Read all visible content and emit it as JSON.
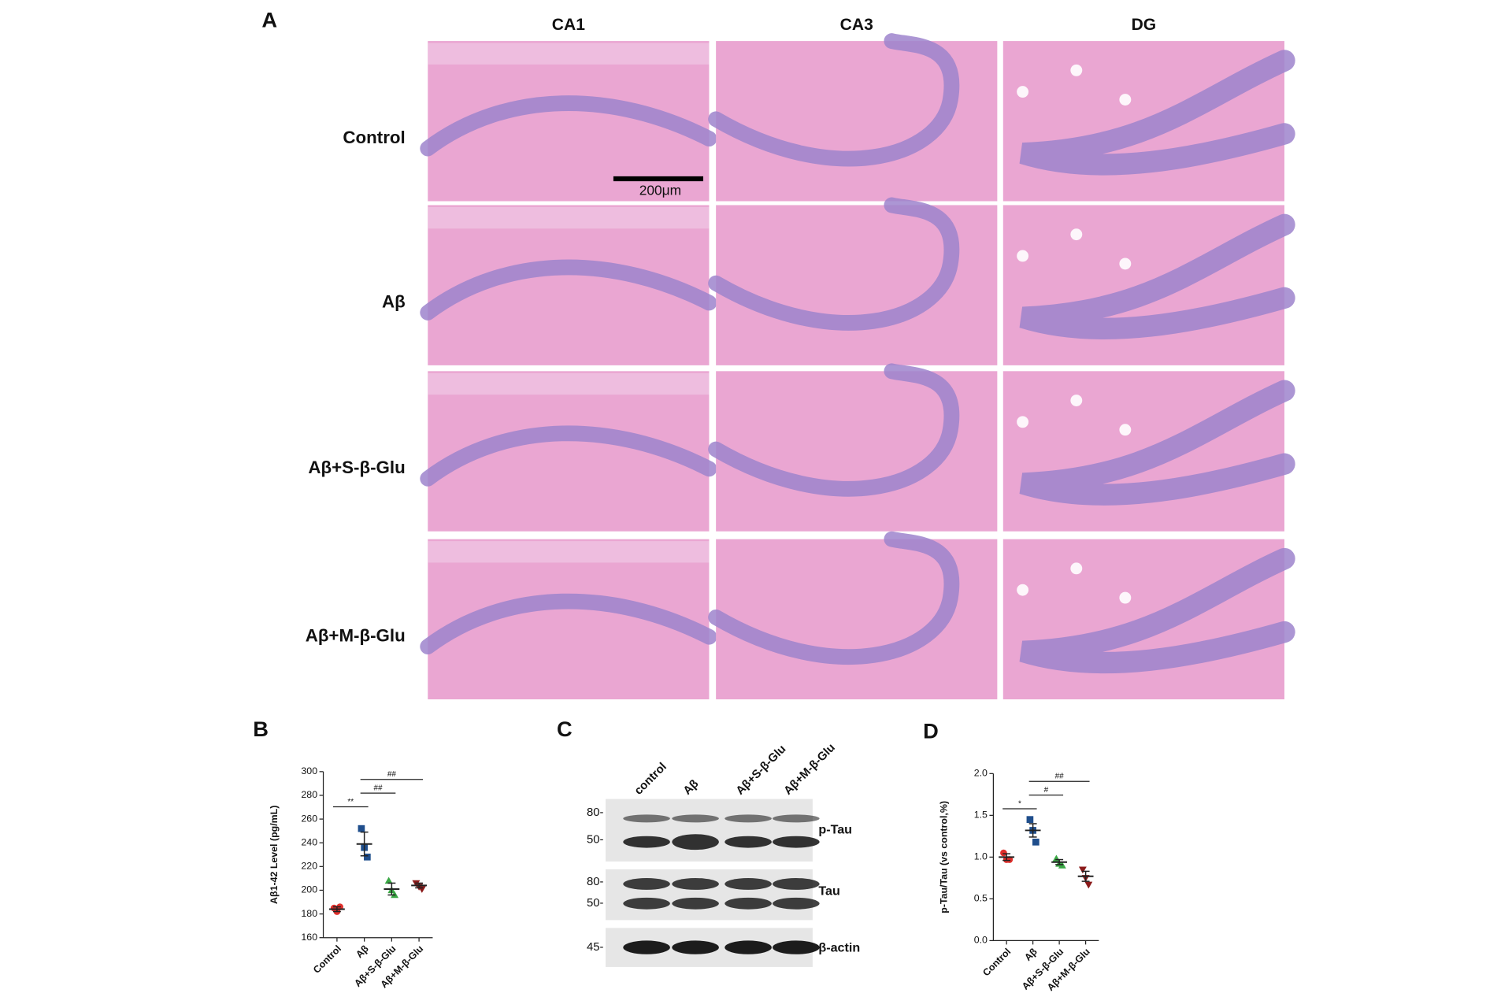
{
  "panel_a": {
    "label": "A",
    "columns": [
      "CA1",
      "CA3",
      "DG"
    ],
    "rows": [
      "Control",
      "Aβ",
      "Aβ+S-β-Glu",
      "Aβ+M-β-Glu"
    ],
    "scale_bar": "200μm"
  },
  "panel_c": {
    "label": "C",
    "lanes": [
      "control",
      "Aβ",
      "Aβ+S-β-Glu",
      "Aβ+M-β-Glu"
    ],
    "markers": [
      "80-",
      "50-",
      "80-",
      "50-",
      "45-"
    ],
    "bands": [
      "p-Tau",
      "Tau",
      "β-actin"
    ]
  },
  "chart_data": [
    {
      "type": "dot",
      "panel": "B",
      "ylabel": "Aβ1-42 Level (pg/mL)",
      "categories": [
        "Control",
        "Aβ",
        "Aβ+S-β-Glu",
        "Aβ+M-β-Glu"
      ],
      "groups": [
        {
          "color": "#e0302c",
          "marker": "circle",
          "values": [
            185,
            182,
            186
          ],
          "mean": 184,
          "error": 2
        },
        {
          "color": "#1f4e8c",
          "marker": "square",
          "values": [
            252,
            236,
            228
          ],
          "mean": 239,
          "error": 10
        },
        {
          "color": "#3aa845",
          "marker": "triangle",
          "values": [
            208,
            200,
            196
          ],
          "mean": 201,
          "error": 5
        },
        {
          "color": "#8b1a1a",
          "marker": "triangle-down",
          "values": [
            206,
            203,
            201
          ],
          "mean": 204,
          "error": 2
        }
      ],
      "ylim": [
        160,
        300
      ],
      "yticks": [
        160,
        180,
        200,
        220,
        240,
        260,
        280,
        300
      ],
      "annotations": [
        {
          "text": "**",
          "between": [
            "Control",
            "Aβ"
          ]
        },
        {
          "text": "##",
          "between": [
            "Aβ",
            "Aβ+S-β-Glu"
          ]
        },
        {
          "text": "##",
          "between": [
            "Aβ",
            "Aβ+M-β-Glu"
          ]
        }
      ]
    },
    {
      "type": "dot",
      "panel": "D",
      "ylabel": "p-Tau/Tau (vs control,%)",
      "categories": [
        "Control",
        "Aβ",
        "Aβ+S-β-Glu",
        "Aβ+M-β-Glu"
      ],
      "groups": [
        {
          "color": "#e0302c",
          "marker": "circle",
          "values": [
            1.05,
            0.97,
            0.97
          ],
          "mean": 1.0,
          "error": 0.04
        },
        {
          "color": "#1f4e8c",
          "marker": "square",
          "values": [
            1.45,
            1.32,
            1.18
          ],
          "mean": 1.32,
          "error": 0.08
        },
        {
          "color": "#3aa845",
          "marker": "triangle",
          "values": [
            0.98,
            0.92,
            0.9
          ],
          "mean": 0.94,
          "error": 0.03
        },
        {
          "color": "#8b1a1a",
          "marker": "triangle-down",
          "values": [
            0.85,
            0.75,
            0.67
          ],
          "mean": 0.77,
          "error": 0.06
        }
      ],
      "ylim": [
        0,
        2
      ],
      "yticks": [
        {
          "value": 0,
          "label": "0.0"
        },
        {
          "value": 0.5,
          "label": "0.5"
        },
        {
          "value": 1,
          "label": "1.0"
        },
        {
          "value": 1.5,
          "label": "1.5"
        },
        {
          "value": 2,
          "label": "2.0"
        }
      ],
      "annotations": [
        {
          "text": "*",
          "between": [
            "Control",
            "Aβ"
          ]
        },
        {
          "text": "#",
          "between": [
            "Aβ",
            "Aβ+S-β-Glu"
          ]
        },
        {
          "text": "##",
          "between": [
            "Aβ",
            "Aβ+M-β-Glu"
          ]
        }
      ]
    }
  ]
}
